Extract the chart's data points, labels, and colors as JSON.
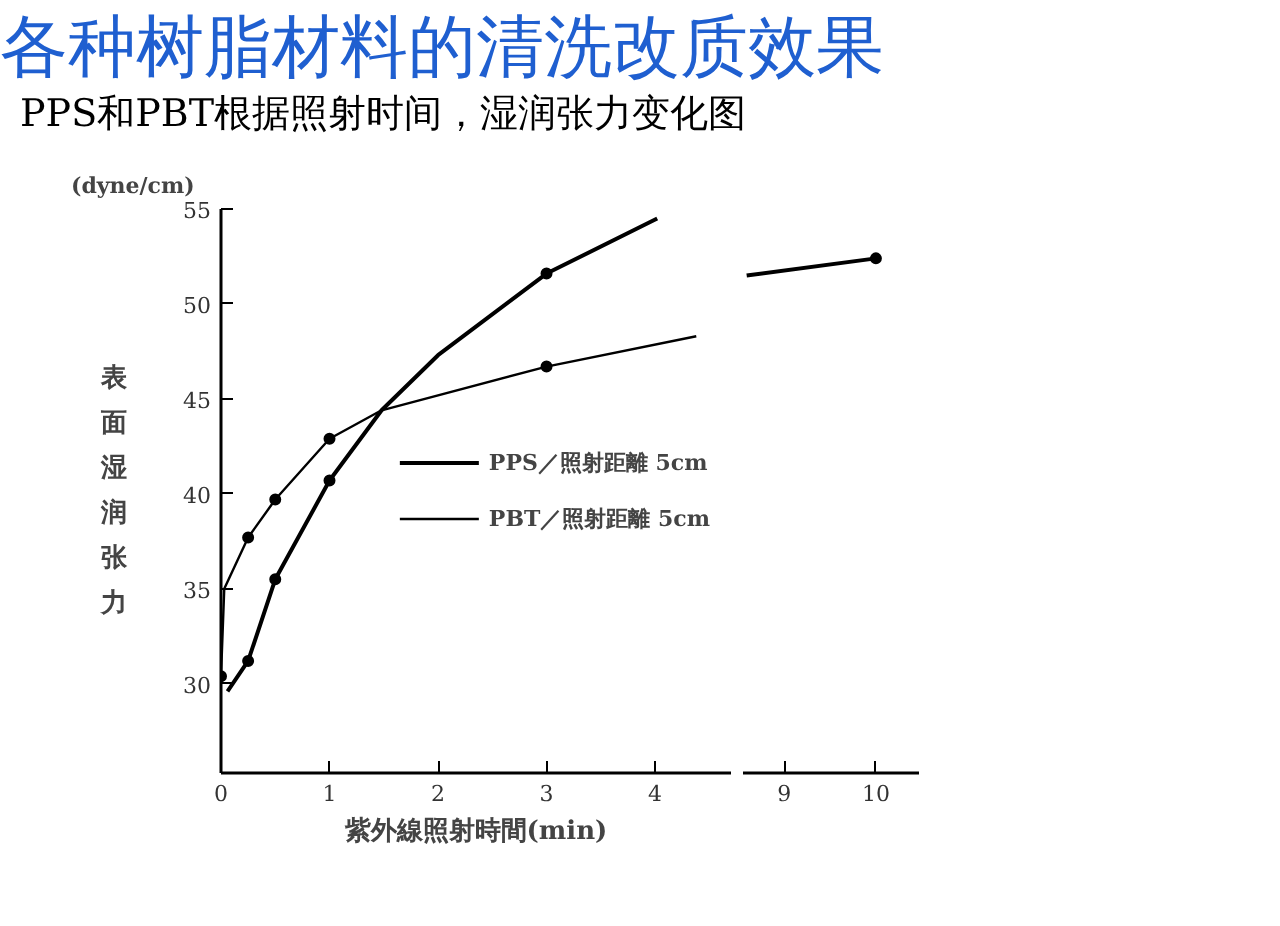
{
  "chart_data": [
    {
      "type": "line",
      "title": "各种树脂材料的清洗改质效果",
      "subtitle": "PPS和PBT根据照射时间，湿润张力变化图",
      "ylabel": "表面湿润张力",
      "xlabel": "紫外線照射時間(min)",
      "annotations": [
        "(dyne/cm)"
      ],
      "xlim": [
        0,
        4.7
      ],
      "xticks": [
        0,
        1,
        2,
        3,
        4
      ],
      "ylim": [
        25.3,
        55
      ],
      "yticks": [
        30,
        35,
        40,
        45,
        50,
        55
      ],
      "grid": false,
      "legend": "right",
      "series": [
        {
          "name": "PPS／照射距離 5cm",
          "color": "#000000",
          "x": [
            0.06,
            0.25,
            0.5,
            1,
            1.48,
            2,
            3,
            4.02
          ],
          "values": [
            29.6,
            31.2,
            35.5,
            40.7,
            44.4,
            47.3,
            51.6,
            54.5
          ]
        },
        {
          "type": "scatter",
          "marker": "circle",
          "color": "#000000",
          "x": [
            0.25,
            0.5,
            1,
            3
          ],
          "values": [
            31.2,
            35.5,
            40.7,
            51.6
          ]
        },
        {
          "name": "PBT／照射距離 5cm",
          "color": "#000000",
          "x": [
            0,
            0.03,
            0.25,
            0.5,
            1,
            1.48,
            3,
            4.38
          ],
          "values": [
            30.4,
            35,
            37.7,
            39.7,
            42.9,
            44.4,
            46.7,
            48.3
          ]
        },
        {
          "type": "scatter",
          "marker": "circle",
          "color": "#000000",
          "x": [
            0,
            0.25,
            0.5,
            1,
            3
          ],
          "values": [
            30.4,
            37.7,
            39.7,
            42.9,
            46.7
          ]
        }
      ]
    },
    {
      "type": "line",
      "xlim": [
        8.55,
        10.47
      ],
      "xticks": [
        9,
        10
      ],
      "ylim": [
        25.3,
        55
      ],
      "tick_labels": "x",
      "grid": false,
      "series": [
        {
          "color": "#000000",
          "x": [
            8.59,
            10
          ],
          "values": [
            51.5,
            52.4
          ]
        },
        {
          "type": "scatter",
          "marker": "circle",
          "color": "#000000",
          "x": [
            10
          ],
          "values": [
            52.4
          ]
        }
      ]
    }
  ]
}
